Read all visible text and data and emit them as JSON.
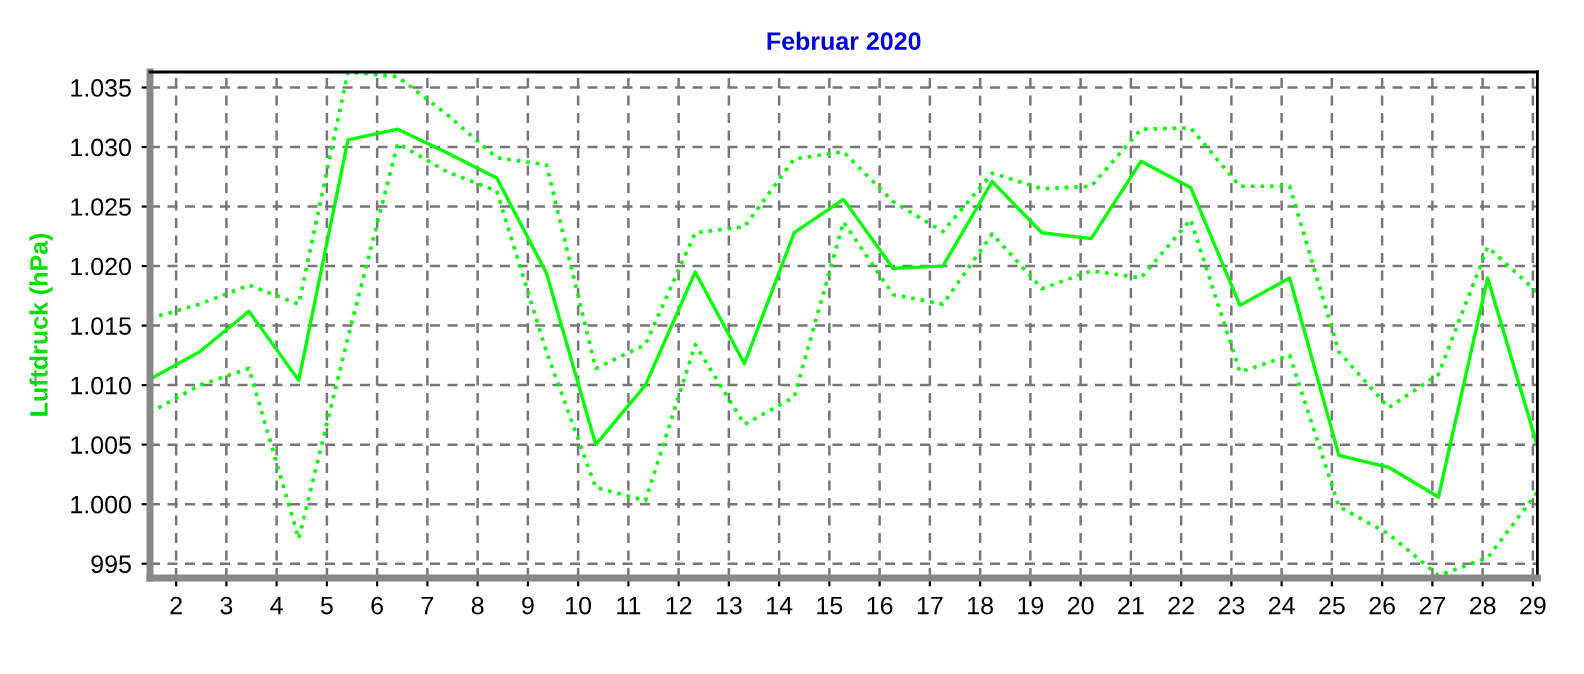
{
  "chart_data": {
    "type": "line",
    "title": "Februar 2020",
    "ylabel": "Luftdruck (hPa)",
    "x": [
      1.48,
      2.47,
      3.45,
      4.44,
      5.42,
      6.41,
      7.4,
      8.38,
      9.37,
      10.35,
      11.34,
      12.33,
      13.31,
      14.3,
      15.28,
      16.27,
      17.26,
      18.24,
      19.23,
      20.21,
      21.2,
      22.19,
      23.17,
      24.16,
      25.14,
      26.13,
      27.12,
      28.1,
      29.09
    ],
    "xlim": [
      1.48,
      29.09
    ],
    "xticks": [
      2,
      3,
      4,
      5,
      6,
      7,
      8,
      9,
      10,
      11,
      12,
      13,
      14,
      15,
      16,
      17,
      18,
      19,
      20,
      21,
      22,
      23,
      24,
      25,
      26,
      27,
      28,
      29
    ],
    "ylim": [
      993.8,
      1036.3
    ],
    "yticks": [
      995,
      {
        "value": 1000,
        "label": "1.000"
      },
      {
        "value": 1005,
        "label": "1.005"
      },
      {
        "value": 1010,
        "label": "1.010"
      },
      {
        "value": 1015,
        "label": "1.015"
      },
      {
        "value": 1020,
        "label": "1.020"
      },
      {
        "value": 1025,
        "label": "1.025"
      },
      {
        "value": 1030,
        "label": "1.030"
      },
      {
        "value": 1035,
        "label": "1.035"
      }
    ],
    "grid": true,
    "marker": "none",
    "series": [
      {
        "color": "#00ff00",
        "line_style": "dotted",
        "values": [
          1015.6,
          1016.8,
          1018.4,
          1016.8,
          1036.3,
          1035.9,
          1032.7,
          1029.1,
          1028.5,
          1011.4,
          1013.4,
          1022.8,
          1023.3,
          1029.0,
          1029.6,
          1025.4,
          1022.9,
          1027.8,
          1026.5,
          1026.7,
          1031.5,
          1031.6,
          1026.7,
          1026.7,
          1012.8,
          1008.1,
          1010.9,
          1021.6,
          1017.8
        ]
      },
      {
        "color": "#00ff00",
        "line_style": "solid",
        "values": [
          1010.5,
          1012.8,
          1016.2,
          1010.4,
          1030.6,
          1031.5,
          1029.5,
          1027.4,
          1019.4,
          1005.0,
          1010.0,
          1019.5,
          1011.8,
          1022.8,
          1025.6,
          1019.8,
          1020.0,
          1027.1,
          1022.8,
          1022.3,
          1028.8,
          1026.6,
          1016.7,
          1019.0,
          1004.1,
          1003.1,
          1000.6,
          1019.0,
          1004.9
        ]
      },
      {
        "color": "#00ff00",
        "line_style": "dotted",
        "values": [
          1007.7,
          1010.0,
          1011.4,
          997.1,
          1014.0,
          1030.3,
          1027.9,
          1026.3,
          1012.8,
          1001.4,
          1000.3,
          1013.4,
          1006.7,
          1009.0,
          1023.7,
          1017.6,
          1016.8,
          1022.7,
          1018.1,
          1019.6,
          1019.0,
          1023.9,
          1011.1,
          1012.5,
          999.8,
          997.5,
          994.0,
          995.5,
          1001.0
        ]
      }
    ]
  }
}
